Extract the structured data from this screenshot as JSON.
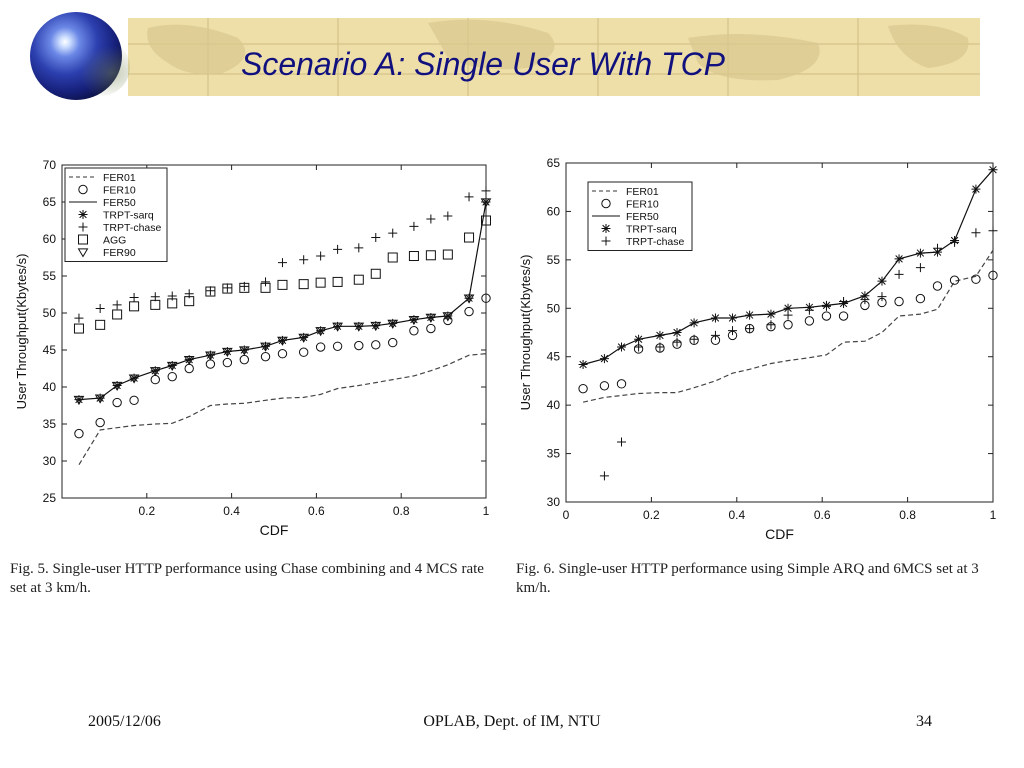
{
  "title": "Scenario A: Single User With TCP",
  "figures": [
    {
      "caption": "Fig. 5.   Single-user HTTP performance using Chase combining and 4 MCS rate set at 3 km/h."
    },
    {
      "caption": "Fig. 6.   Single-user HTTP performance using Simple ARQ and 6MCS set at 3 km/h."
    }
  ],
  "footer": {
    "date": "2005/12/06",
    "center": "OPLAB, Dept. of IM, NTU",
    "page": "34"
  },
  "chart_data": [
    {
      "type": "line",
      "xlabel": "CDF",
      "ylabel": "User Throughput(Kbytes/s)",
      "xlim": [
        0,
        1
      ],
      "ylim": [
        25,
        70
      ],
      "xticks": [
        "0.2",
        "0.4",
        "0.6",
        "0.8",
        "1"
      ],
      "yticks": [
        "25",
        "30",
        "35",
        "40",
        "45",
        "50",
        "55",
        "60",
        "65",
        "70"
      ],
      "legend_position": "top-left",
      "grid": false,
      "series": [
        {
          "name": "FER01",
          "style": "dashed",
          "marker": "none",
          "x": [
            0.04,
            0.09,
            0.13,
            0.17,
            0.22,
            0.26,
            0.3,
            0.35,
            0.39,
            0.43,
            0.48,
            0.52,
            0.57,
            0.61,
            0.65,
            0.7,
            0.74,
            0.78,
            0.83,
            0.87,
            0.91,
            0.96,
            1.0
          ],
          "y": [
            29.5,
            34.2,
            34.5,
            34.8,
            35.0,
            35.1,
            36.0,
            37.5,
            37.7,
            37.8,
            38.2,
            38.5,
            38.6,
            39.0,
            39.8,
            40.2,
            40.6,
            41.0,
            41.5,
            42.2,
            43.0,
            44.3,
            44.5
          ]
        },
        {
          "name": "FER10",
          "style": "none",
          "marker": "circle",
          "x": [
            0.04,
            0.09,
            0.13,
            0.17,
            0.22,
            0.26,
            0.3,
            0.35,
            0.39,
            0.43,
            0.48,
            0.52,
            0.57,
            0.61,
            0.65,
            0.7,
            0.74,
            0.78,
            0.83,
            0.87,
            0.91,
            0.96,
            1.0
          ],
          "y": [
            33.7,
            35.2,
            37.9,
            38.2,
            41.0,
            41.4,
            42.5,
            43.1,
            43.3,
            43.7,
            44.1,
            44.5,
            44.7,
            45.4,
            45.5,
            45.6,
            45.7,
            46.0,
            47.6,
            47.9,
            49.0,
            50.2,
            52.0
          ]
        },
        {
          "name": "FER50",
          "style": "solid",
          "marker": "none",
          "x": [
            0.04,
            0.09,
            0.13,
            0.17,
            0.22,
            0.26,
            0.3,
            0.35,
            0.39,
            0.43,
            0.48,
            0.52,
            0.57,
            0.61,
            0.65,
            0.7,
            0.74,
            0.78,
            0.83,
            0.87,
            0.91,
            0.96,
            1.0
          ],
          "y": [
            38.3,
            38.5,
            40.2,
            41.2,
            42.2,
            42.9,
            43.7,
            44.3,
            44.8,
            45.0,
            45.5,
            46.3,
            46.7,
            47.6,
            48.2,
            48.2,
            48.3,
            48.6,
            49.1,
            49.4,
            49.6,
            52.0,
            65.0
          ]
        },
        {
          "name": "TRPT-sarq",
          "style": "none",
          "marker": "asterisk",
          "x": [
            0.04,
            0.09,
            0.13,
            0.17,
            0.22,
            0.26,
            0.3,
            0.35,
            0.39,
            0.43,
            0.48,
            0.52,
            0.57,
            0.61,
            0.65,
            0.7,
            0.74,
            0.78,
            0.83,
            0.87,
            0.91,
            0.96,
            1.0
          ],
          "y": [
            38.3,
            38.5,
            40.2,
            41.2,
            42.2,
            42.9,
            43.7,
            44.3,
            44.8,
            45.0,
            45.5,
            46.3,
            46.7,
            47.6,
            48.2,
            48.2,
            48.3,
            48.6,
            49.1,
            49.4,
            49.6,
            52.0,
            65.0
          ]
        },
        {
          "name": "TRPT-chase",
          "style": "none",
          "marker": "plus",
          "x": [
            0.04,
            0.09,
            0.13,
            0.17,
            0.22,
            0.26,
            0.3,
            0.35,
            0.39,
            0.43,
            0.48,
            0.52,
            0.57,
            0.61,
            0.65,
            0.7,
            0.74,
            0.78,
            0.83,
            0.87,
            0.91,
            0.96,
            1.0
          ],
          "y": [
            49.3,
            50.6,
            51.1,
            52.1,
            52.2,
            52.3,
            52.6,
            53.0,
            53.4,
            53.6,
            54.2,
            56.8,
            57.2,
            57.7,
            58.6,
            58.8,
            60.2,
            60.8,
            61.7,
            62.7,
            63.1,
            65.7,
            66.5
          ]
        },
        {
          "name": "AGG",
          "style": "none",
          "marker": "square",
          "x": [
            0.04,
            0.09,
            0.13,
            0.17,
            0.22,
            0.26,
            0.3,
            0.35,
            0.39,
            0.43,
            0.48,
            0.52,
            0.57,
            0.61,
            0.65,
            0.7,
            0.74,
            0.78,
            0.83,
            0.87,
            0.91,
            0.96,
            1.0
          ],
          "y": [
            47.9,
            48.4,
            49.8,
            50.9,
            51.1,
            51.3,
            51.6,
            52.9,
            53.3,
            53.4,
            53.4,
            53.8,
            53.9,
            54.1,
            54.2,
            54.5,
            55.3,
            57.5,
            57.7,
            57.8,
            57.9,
            60.2,
            62.5
          ]
        },
        {
          "name": "FER90",
          "style": "none",
          "marker": "triangle-down",
          "x": [
            0.04,
            0.09,
            0.13,
            0.17,
            0.22,
            0.26,
            0.3,
            0.35,
            0.39,
            0.43,
            0.48,
            0.52,
            0.57,
            0.61,
            0.65,
            0.7,
            0.74,
            0.78,
            0.83,
            0.87,
            0.91,
            0.96,
            1.0
          ],
          "y": [
            38.3,
            38.5,
            40.2,
            41.2,
            42.2,
            42.9,
            43.7,
            44.3,
            44.8,
            45.0,
            45.5,
            46.3,
            46.7,
            47.6,
            48.2,
            48.2,
            48.3,
            48.6,
            49.1,
            49.4,
            49.6,
            52.0,
            65.0
          ]
        }
      ]
    },
    {
      "type": "line",
      "xlabel": "CDF",
      "ylabel": "User Throughput(Kbytes/s)",
      "xlim": [
        0,
        1
      ],
      "ylim": [
        30,
        65
      ],
      "xticks": [
        "0",
        "0.2",
        "0.4",
        "0.6",
        "0.8",
        "1"
      ],
      "yticks": [
        "30",
        "35",
        "40",
        "45",
        "50",
        "55",
        "60",
        "65"
      ],
      "legend_position": "top-left",
      "grid": false,
      "series": [
        {
          "name": "FER01",
          "style": "dashed",
          "marker": "none",
          "x": [
            0.04,
            0.09,
            0.13,
            0.17,
            0.22,
            0.26,
            0.3,
            0.35,
            0.39,
            0.43,
            0.48,
            0.52,
            0.57,
            0.61,
            0.65,
            0.7,
            0.74,
            0.78,
            0.83,
            0.87,
            0.91,
            0.96,
            1.0
          ],
          "y": [
            40.3,
            40.8,
            41.0,
            41.2,
            41.3,
            41.3,
            41.8,
            42.5,
            43.3,
            43.7,
            44.3,
            44.6,
            44.9,
            45.2,
            46.5,
            46.6,
            47.5,
            49.2,
            49.4,
            49.9,
            52.8,
            53.3,
            56.0
          ]
        },
        {
          "name": "FER10",
          "style": "none",
          "marker": "circle",
          "x": [
            0.04,
            0.09,
            0.13,
            0.17,
            0.22,
            0.26,
            0.3,
            0.35,
            0.39,
            0.43,
            0.48,
            0.52,
            0.57,
            0.61,
            0.65,
            0.7,
            0.74,
            0.78,
            0.83,
            0.87,
            0.91,
            0.96,
            1.0
          ],
          "y": [
            41.7,
            42.0,
            42.2,
            45.8,
            45.9,
            46.3,
            46.7,
            46.7,
            47.2,
            47.9,
            48.1,
            48.3,
            48.7,
            49.2,
            49.2,
            50.3,
            50.6,
            50.7,
            51.0,
            52.3,
            52.9,
            53.0,
            53.4
          ]
        },
        {
          "name": "FER50",
          "style": "solid",
          "marker": "none",
          "x": [
            0.04,
            0.09,
            0.13,
            0.17,
            0.22,
            0.26,
            0.3,
            0.35,
            0.39,
            0.43,
            0.48,
            0.52,
            0.57,
            0.61,
            0.65,
            0.7,
            0.74,
            0.78,
            0.83,
            0.87,
            0.91,
            0.96,
            1.0
          ],
          "y": [
            44.2,
            44.8,
            46.0,
            46.8,
            47.2,
            47.5,
            48.5,
            49.0,
            49.0,
            49.3,
            49.4,
            50.0,
            50.1,
            50.3,
            50.5,
            51.3,
            52.8,
            55.1,
            55.7,
            55.8,
            57.0,
            62.3,
            64.3
          ]
        },
        {
          "name": "TRPT-sarq",
          "style": "none",
          "marker": "asterisk",
          "x": [
            0.04,
            0.09,
            0.13,
            0.17,
            0.22,
            0.26,
            0.3,
            0.35,
            0.39,
            0.43,
            0.48,
            0.52,
            0.57,
            0.61,
            0.65,
            0.7,
            0.74,
            0.78,
            0.83,
            0.87,
            0.91,
            0.96,
            1.0
          ],
          "y": [
            44.2,
            44.8,
            46.0,
            46.8,
            47.2,
            47.5,
            48.5,
            49.0,
            49.0,
            49.3,
            49.4,
            50.0,
            50.1,
            50.3,
            50.5,
            51.3,
            52.8,
            55.1,
            55.7,
            55.8,
            57.0,
            62.3,
            64.3
          ]
        },
        {
          "name": "TRPT-chase",
          "style": "none",
          "marker": "plus",
          "x": [
            0.09,
            0.13,
            0.17,
            0.22,
            0.26,
            0.3,
            0.35,
            0.39,
            0.43,
            0.48,
            0.52,
            0.57,
            0.61,
            0.65,
            0.7,
            0.74,
            0.78,
            0.83,
            0.87,
            0.91,
            0.96,
            1.0
          ],
          "y": [
            32.7,
            36.2,
            46.0,
            46.0,
            46.5,
            46.8,
            47.2,
            47.7,
            47.9,
            48.3,
            49.3,
            49.8,
            50.2,
            50.7,
            50.9,
            51.2,
            53.5,
            54.2,
            56.2,
            56.8,
            57.8,
            58.0
          ]
        }
      ]
    }
  ]
}
